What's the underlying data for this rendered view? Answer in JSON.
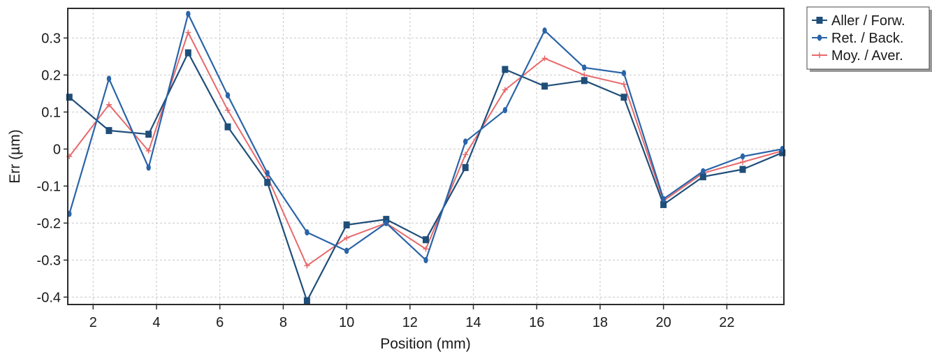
{
  "chart_data": {
    "type": "line",
    "title": "",
    "xlabel": "Position (mm)",
    "ylabel": "Err (µm)",
    "xlim": [
      1.2,
      23.8
    ],
    "ylim": [
      -0.42,
      0.38
    ],
    "x_ticks": [
      2,
      4,
      6,
      8,
      10,
      12,
      14,
      16,
      18,
      20,
      22
    ],
    "x_tick_labels": [
      "2",
      "4",
      "6",
      "8",
      "10",
      "12",
      "14",
      "16",
      "18",
      "20",
      "22"
    ],
    "y_ticks": [
      -0.4,
      -0.3,
      -0.2,
      -0.1,
      0,
      0.1,
      0.2,
      0.3
    ],
    "y_tick_labels": [
      "-0.4",
      "-0.3",
      "-0.2",
      "-0.1",
      "0",
      "0.1",
      "0.2",
      "0.3"
    ],
    "grid": true,
    "legend_position": "outside-top-right",
    "x": [
      1.25,
      2.5,
      3.75,
      5.0,
      6.25,
      7.5,
      8.75,
      10.0,
      11.25,
      12.5,
      13.75,
      15.0,
      16.25,
      17.5,
      18.75,
      20.0,
      21.25,
      22.5,
      23.75
    ],
    "series": [
      {
        "name": "Aller / Forw.",
        "color": "#1f4e79",
        "marker": "square",
        "values": [
          0.14,
          0.05,
          0.04,
          0.26,
          0.06,
          -0.09,
          -0.41,
          -0.205,
          -0.19,
          -0.245,
          -0.05,
          0.215,
          0.17,
          0.185,
          0.14,
          -0.15,
          -0.075,
          -0.055,
          -0.01
        ]
      },
      {
        "name": "Ret. / Back.",
        "color": "#2a64a8",
        "marker": "diamond",
        "values": [
          -0.175,
          0.19,
          -0.05,
          0.365,
          0.145,
          -0.065,
          -0.225,
          -0.275,
          -0.2,
          -0.3,
          0.02,
          0.105,
          0.32,
          0.22,
          0.205,
          -0.135,
          -0.06,
          -0.02,
          0.0
        ]
      },
      {
        "name": "Moy. / Aver.",
        "color": "#e8696b",
        "marker": "plus",
        "values": [
          -0.02,
          0.12,
          -0.005,
          0.315,
          0.105,
          -0.075,
          -0.315,
          -0.24,
          -0.2,
          -0.27,
          -0.015,
          0.16,
          0.245,
          0.2,
          0.175,
          -0.14,
          -0.065,
          -0.035,
          -0.005
        ]
      }
    ]
  }
}
